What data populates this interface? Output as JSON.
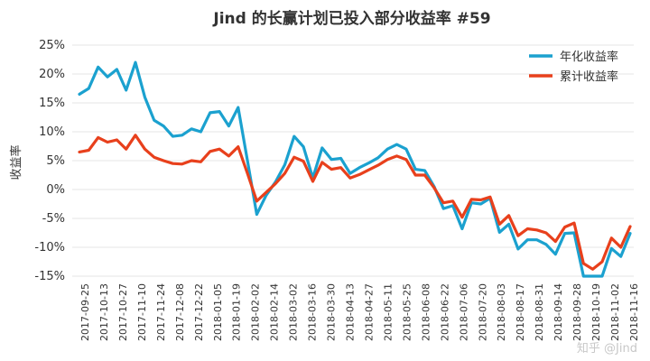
{
  "chart_data": {
    "type": "line",
    "title": "Jind 的长赢计划已投入部分收益率 #59",
    "ylabel": "收益率",
    "xlabel": "",
    "ylim": [
      -15,
      25
    ],
    "yticks": [
      -15,
      -10,
      -5,
      0,
      5,
      10,
      15,
      20,
      25
    ],
    "yticks_labels": [
      "-15%",
      "-10%",
      "-5%",
      "0%",
      "5%",
      "10%",
      "15%",
      "20%",
      "25%"
    ],
    "grid": true,
    "legend_position": "top-right",
    "x_labels": [
      "2017-09-25",
      "2017-10-13",
      "2017-10-27",
      "2017-11-10",
      "2017-11-24",
      "2017-12-08",
      "2017-12-22",
      "2018-01-05",
      "2018-01-19",
      "2018-02-02",
      "2018-02-14",
      "2018-03-02",
      "2018-03-16",
      "2018-03-30",
      "2018-04-13",
      "2018-04-27",
      "2018-05-11",
      "2018-05-25",
      "2018-06-08",
      "2018-06-22",
      "2018-07-06",
      "2018-07-20",
      "2018-08-03",
      "2018-08-17",
      "2018-08-31",
      "2018-09-14",
      "2018-09-28",
      "2018-10-19",
      "2018-11-02",
      "2018-11-16"
    ],
    "series": [
      {
        "name": "年化收益率",
        "color": "#1ba1cf",
        "values": [
          16.5,
          17.5,
          21.2,
          19.5,
          20.8,
          17.2,
          22.0,
          16.0,
          12.0,
          11.0,
          9.2,
          9.4,
          10.5,
          10.0,
          13.3,
          13.5,
          11.0,
          14.2,
          5.0,
          -4.3,
          -1.0,
          1.3,
          4.3,
          9.2,
          7.4,
          2.0,
          7.2,
          5.2,
          5.4,
          2.8,
          3.8,
          4.6,
          5.5,
          7.0,
          7.8,
          7.0,
          3.5,
          3.3,
          0.5,
          -3.3,
          -2.8,
          -6.8,
          -2.3,
          -2.5,
          -1.5,
          -7.4,
          -6.0,
          -10.3,
          -8.7,
          -8.7,
          -9.5,
          -11.2,
          -7.6,
          -7.5,
          -15.0,
          -15.0,
          -15.0,
          -10.2,
          -11.6,
          -7.6
        ]
      },
      {
        "name": "累计收益率",
        "color": "#e8401c",
        "values": [
          6.5,
          6.8,
          9.0,
          8.2,
          8.6,
          7.0,
          9.4,
          7.0,
          5.6,
          5.0,
          4.5,
          4.4,
          5.0,
          4.8,
          6.6,
          7.0,
          5.8,
          7.4,
          2.8,
          -2.0,
          -0.5,
          1.0,
          2.8,
          5.6,
          4.9,
          1.4,
          4.7,
          3.5,
          3.8,
          2.0,
          2.6,
          3.4,
          4.2,
          5.2,
          5.8,
          5.2,
          2.5,
          2.5,
          0.3,
          -2.3,
          -2.0,
          -4.8,
          -1.7,
          -1.8,
          -1.3,
          -6.0,
          -4.5,
          -8.0,
          -6.8,
          -7.0,
          -7.5,
          -9.0,
          -6.5,
          -5.8,
          -12.8,
          -13.8,
          -12.5,
          -8.4,
          -10.0,
          -6.4
        ]
      }
    ]
  },
  "watermark": {
    "text": "知乎 @Jind"
  }
}
